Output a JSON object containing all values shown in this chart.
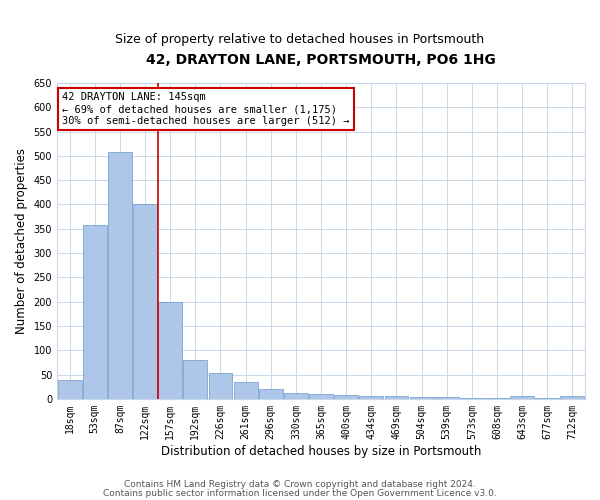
{
  "title": "42, DRAYTON LANE, PORTSMOUTH, PO6 1HG",
  "subtitle": "Size of property relative to detached houses in Portsmouth",
  "xlabel": "Distribution of detached houses by size in Portsmouth",
  "ylabel": "Number of detached properties",
  "bar_color": "#aec6e8",
  "bar_edge_color": "#6699cc",
  "categories": [
    "18sqm",
    "53sqm",
    "87sqm",
    "122sqm",
    "157sqm",
    "192sqm",
    "226sqm",
    "261sqm",
    "296sqm",
    "330sqm",
    "365sqm",
    "400sqm",
    "434sqm",
    "469sqm",
    "504sqm",
    "539sqm",
    "573sqm",
    "608sqm",
    "643sqm",
    "677sqm",
    "712sqm"
  ],
  "values": [
    38,
    357,
    507,
    400,
    200,
    80,
    53,
    35,
    21,
    12,
    9,
    8,
    5,
    5,
    3,
    3,
    2,
    1,
    6,
    1,
    5
  ],
  "vline_x": 3.5,
  "vline_color": "#cc0000",
  "annotation_line1": "42 DRAYTON LANE: 145sqm",
  "annotation_line2": "← 69% of detached houses are smaller (1,175)",
  "annotation_line3": "30% of semi-detached houses are larger (512) →",
  "annotation_box_color": "#ffffff",
  "annotation_box_edge_color": "#cc0000",
  "ylim": [
    0,
    650
  ],
  "yticks": [
    0,
    50,
    100,
    150,
    200,
    250,
    300,
    350,
    400,
    450,
    500,
    550,
    600,
    650
  ],
  "footer_line1": "Contains HM Land Registry data © Crown copyright and database right 2024.",
  "footer_line2": "Contains public sector information licensed under the Open Government Licence v3.0.",
  "bg_color": "#ffffff",
  "grid_color": "#c8d8e8",
  "title_fontsize": 10,
  "subtitle_fontsize": 9,
  "xlabel_fontsize": 8.5,
  "ylabel_fontsize": 8.5,
  "annotation_fontsize": 7.5,
  "footer_fontsize": 6.5,
  "tick_fontsize": 7
}
